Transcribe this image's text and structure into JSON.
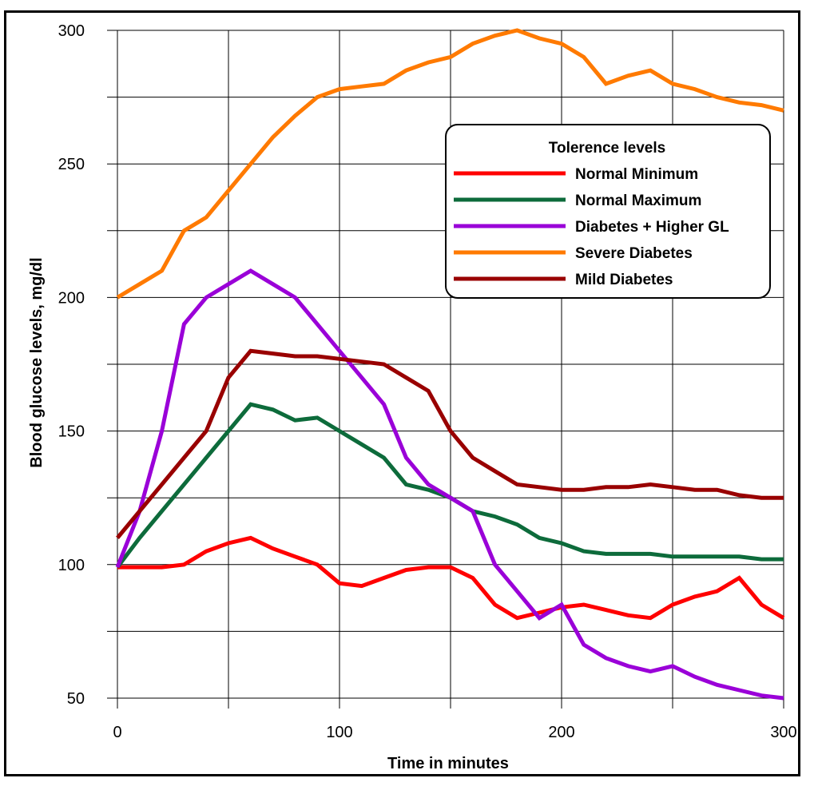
{
  "chart_data": {
    "type": "line",
    "title": "",
    "xlabel": "Time in minutes",
    "ylabel": "Blood glucose levels, mg/dl",
    "xlim": [
      0,
      300
    ],
    "ylim": [
      50,
      300
    ],
    "xticks": [
      0,
      100,
      200,
      300
    ],
    "yticks": [
      50,
      100,
      150,
      200,
      250,
      300
    ],
    "xtick_labels": [
      "0",
      "100",
      "200",
      "300"
    ],
    "ytick_labels": [
      "50",
      "100",
      "150",
      "200",
      "250",
      "300"
    ],
    "grid": true,
    "legend": {
      "title": "Tolerence levels",
      "placement": "top-right"
    },
    "x": [
      0,
      10,
      20,
      30,
      40,
      50,
      60,
      70,
      80,
      90,
      100,
      110,
      120,
      130,
      140,
      150,
      160,
      170,
      180,
      190,
      200,
      210,
      220,
      230,
      240,
      250,
      260,
      270,
      280,
      290,
      300
    ],
    "series": [
      {
        "name": "Normal Minimum",
        "color": "#ff0000",
        "values": [
          99,
          99,
          99,
          100,
          105,
          108,
          110,
          106,
          103,
          100,
          93,
          92,
          95,
          98,
          99,
          99,
          95,
          85,
          80,
          82,
          84,
          85,
          83,
          81,
          80,
          85,
          88,
          90,
          95,
          85,
          80
        ]
      },
      {
        "name": "Normal Maximum",
        "color": "#0d6b3b",
        "values": [
          99,
          110,
          120,
          130,
          140,
          150,
          160,
          158,
          154,
          155,
          150,
          145,
          140,
          130,
          128,
          125,
          120,
          118,
          115,
          110,
          108,
          105,
          104,
          104,
          104,
          103,
          103,
          103,
          103,
          102,
          102
        ]
      },
      {
        "name": "Diabetes + Higher GL",
        "color": "#9a00d8",
        "values": [
          99,
          120,
          150,
          190,
          200,
          205,
          210,
          205,
          200,
          190,
          180,
          170,
          160,
          140,
          130,
          125,
          120,
          100,
          90,
          80,
          85,
          70,
          65,
          62,
          60,
          62,
          58,
          55,
          53,
          51,
          50
        ]
      },
      {
        "name": "Severe Diabetes",
        "color": "#ff7a00",
        "values": [
          200,
          205,
          210,
          225,
          230,
          240,
          250,
          260,
          268,
          275,
          278,
          279,
          280,
          285,
          288,
          290,
          295,
          298,
          300,
          297,
          295,
          290,
          280,
          283,
          285,
          280,
          278,
          275,
          273,
          272,
          270
        ]
      },
      {
        "name": "Mild Diabetes",
        "color": "#990000",
        "values": [
          110,
          120,
          130,
          140,
          150,
          170,
          180,
          179,
          178,
          178,
          177,
          176,
          175,
          170,
          165,
          150,
          140,
          135,
          130,
          129,
          128,
          128,
          129,
          129,
          130,
          129,
          128,
          128,
          126,
          125,
          125
        ]
      }
    ]
  }
}
